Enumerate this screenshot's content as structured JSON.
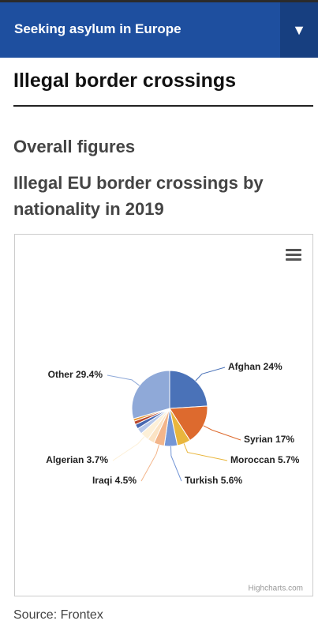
{
  "header": {
    "title": "Seeking asylum in Europe"
  },
  "page_title": "Illegal border crossings",
  "section_title": "Overall figures",
  "chart_data": {
    "type": "pie",
    "title": "Illegal EU border crossings by nationality in 2019",
    "categories": [
      "Afghan",
      "Syrian",
      "Moroccan",
      "Turkish",
      "Iraqi",
      null,
      "Algerian",
      null,
      null,
      null,
      null,
      "Other"
    ],
    "values": [
      24,
      17,
      5.7,
      5.6,
      4.5,
      3.0,
      3.7,
      2.5,
      2.0,
      1.5,
      1.1,
      29.4
    ],
    "value_labels": [
      "24%",
      "17%",
      "5.7%",
      "5.6%",
      "4.5%",
      null,
      "3.7%",
      null,
      null,
      null,
      null,
      "29.4%"
    ],
    "colors": [
      "#4a72b8",
      "#dd6a2e",
      "#e9b63d",
      "#7496d6",
      "#f3b58a",
      "#fbe3c4",
      "#fdf0d8",
      "#b7c8ea",
      "#4767b0",
      "#b8452a",
      "#e8962f",
      "#8fa9d8"
    ],
    "credits": "Highcharts.com"
  },
  "source": "Source: Frontex"
}
